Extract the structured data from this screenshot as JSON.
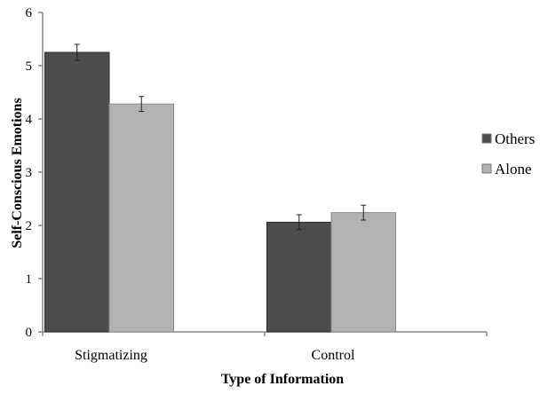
{
  "chart_data": {
    "type": "bar",
    "title": "",
    "xlabel": "Type of Information",
    "ylabel": "Self-Conscious Emotions",
    "ylim": [
      0,
      6
    ],
    "yticks": [
      "0",
      "1",
      "2",
      "3",
      "4",
      "5",
      "6"
    ],
    "categories": [
      "Stigmatizing",
      "Control"
    ],
    "series": [
      {
        "name": "Others",
        "color": "#4d4d4d",
        "values": [
          5.25,
          2.06
        ],
        "errors": [
          0.15,
          0.14
        ]
      },
      {
        "name": "Alone",
        "color": "#b3b3b3",
        "values": [
          4.28,
          2.24
        ],
        "errors": [
          0.14,
          0.14
        ]
      }
    ],
    "legend": "right",
    "grid": false
  }
}
